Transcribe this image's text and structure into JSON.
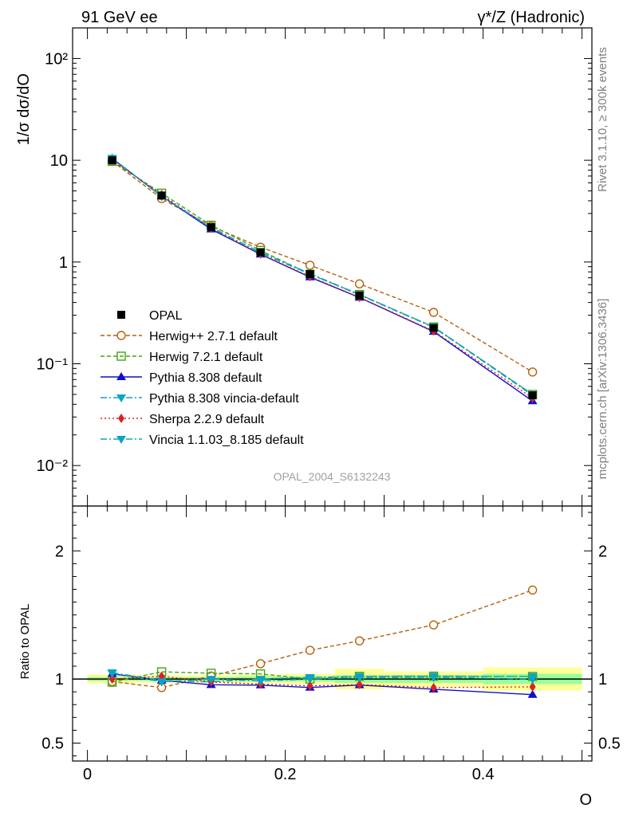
{
  "header": {
    "left": "91 GeV ee",
    "right": "γ*/Z (Hadronic)"
  },
  "side_text": {
    "rivet": "Rivet 3.1.10, ≥ 300k events",
    "mcplots": "mcplots.cern.ch [arXiv:1306.3436]"
  },
  "watermark": "OPAL_2004_S6132243",
  "chart_data": {
    "type": "line",
    "xlabel": "O",
    "x_ticks": [
      0,
      0.2,
      0.4
    ],
    "x_tick_labels": [
      "0",
      "0.2",
      "0.4"
    ],
    "xlim": [
      -0.015,
      0.51
    ],
    "bin_edges": [
      0,
      0.05,
      0.1,
      0.15,
      0.2,
      0.25,
      0.3,
      0.4,
      0.5
    ],
    "main": {
      "ylabel": "1/σ dσ/dO",
      "yscale": "log",
      "ylim": [
        0.004,
        200
      ],
      "y_ticks": [
        0.01,
        0.1,
        1,
        10,
        100
      ],
      "y_tick_labels": [
        "10⁻²",
        "10⁻¹",
        "1",
        "10",
        "10²"
      ]
    },
    "ratio": {
      "ylabel": "Ratio to OPAL",
      "ylim": [
        0.36,
        2.35
      ],
      "y_ticks": [
        0.5,
        1,
        2
      ],
      "y_tick_labels": [
        "0.5",
        "1",
        "2"
      ]
    },
    "data": {
      "name": "OPAL",
      "x": [
        0.025,
        0.075,
        0.125,
        0.175,
        0.225,
        0.275,
        0.35,
        0.45
      ],
      "values": [
        10.0,
        4.5,
        2.2,
        1.25,
        0.76,
        0.47,
        0.225,
        0.049
      ],
      "ratio_band_total": [
        0.035,
        0.03,
        0.03,
        0.035,
        0.04,
        0.08,
        0.06,
        0.09
      ],
      "ratio_band_stat": [
        0.015,
        0.015,
        0.015,
        0.02,
        0.02,
        0.03,
        0.03,
        0.04
      ]
    },
    "series": [
      {
        "name": "Herwig++ 2.7.1 default",
        "color": "#b8600a",
        "dash": "5,3",
        "marker": "circle-open",
        "values": [
          9.8,
          4.2,
          2.25,
          1.4,
          0.93,
          0.61,
          0.32,
          0.083
        ],
        "ratio": [
          0.98,
          0.933,
          1.023,
          1.12,
          1.224,
          1.298,
          1.422,
          1.694
        ]
      },
      {
        "name": "Herwig 7.2.1 default",
        "color": "#44a317",
        "dash": "5,3",
        "marker": "square-open",
        "values": [
          9.75,
          4.75,
          2.3,
          1.3,
          0.76,
          0.48,
          0.23,
          0.05
        ],
        "ratio": [
          0.975,
          1.056,
          1.045,
          1.04,
          1.0,
          1.021,
          1.022,
          1.02
        ]
      },
      {
        "name": "Pythia 8.308 default",
        "color": "#1010c8",
        "dash": "",
        "marker": "triangle-up",
        "values": [
          10.4,
          4.45,
          2.1,
          1.19,
          0.71,
          0.448,
          0.207,
          0.043
        ],
        "ratio": [
          1.04,
          0.989,
          0.955,
          0.952,
          0.934,
          0.953,
          0.92,
          0.878
        ]
      },
      {
        "name": "Pythia 8.308 vincia-default",
        "color": "#0ea3c2",
        "dash": "8,3,2,3",
        "marker": "triangle-down",
        "values": [
          10.5,
          4.45,
          2.15,
          1.25,
          0.77,
          0.48,
          0.23,
          0.05
        ],
        "ratio": [
          1.05,
          0.989,
          0.977,
          1.0,
          1.013,
          1.021,
          1.022,
          1.02
        ]
      },
      {
        "name": "Sherpa 2.2.9 default",
        "color": "#e02020",
        "dash": "2,3",
        "marker": "diamond",
        "values": [
          10.0,
          4.6,
          2.15,
          1.2,
          0.72,
          0.45,
          0.21,
          0.046
        ],
        "ratio": [
          1.0,
          1.022,
          0.977,
          0.96,
          0.947,
          0.957,
          0.933,
          0.939
        ]
      },
      {
        "name": "Vincia 1.1.03_8.185 default",
        "color": "#0ea3c2",
        "dash": "8,3,2,3",
        "marker": "triangle-down",
        "values": [
          10.45,
          4.4,
          2.2,
          1.23,
          0.76,
          0.475,
          0.228,
          0.049
        ],
        "ratio": [
          1.045,
          0.978,
          1.0,
          0.984,
          1.0,
          1.01,
          1.013,
          1.0
        ]
      }
    ]
  }
}
